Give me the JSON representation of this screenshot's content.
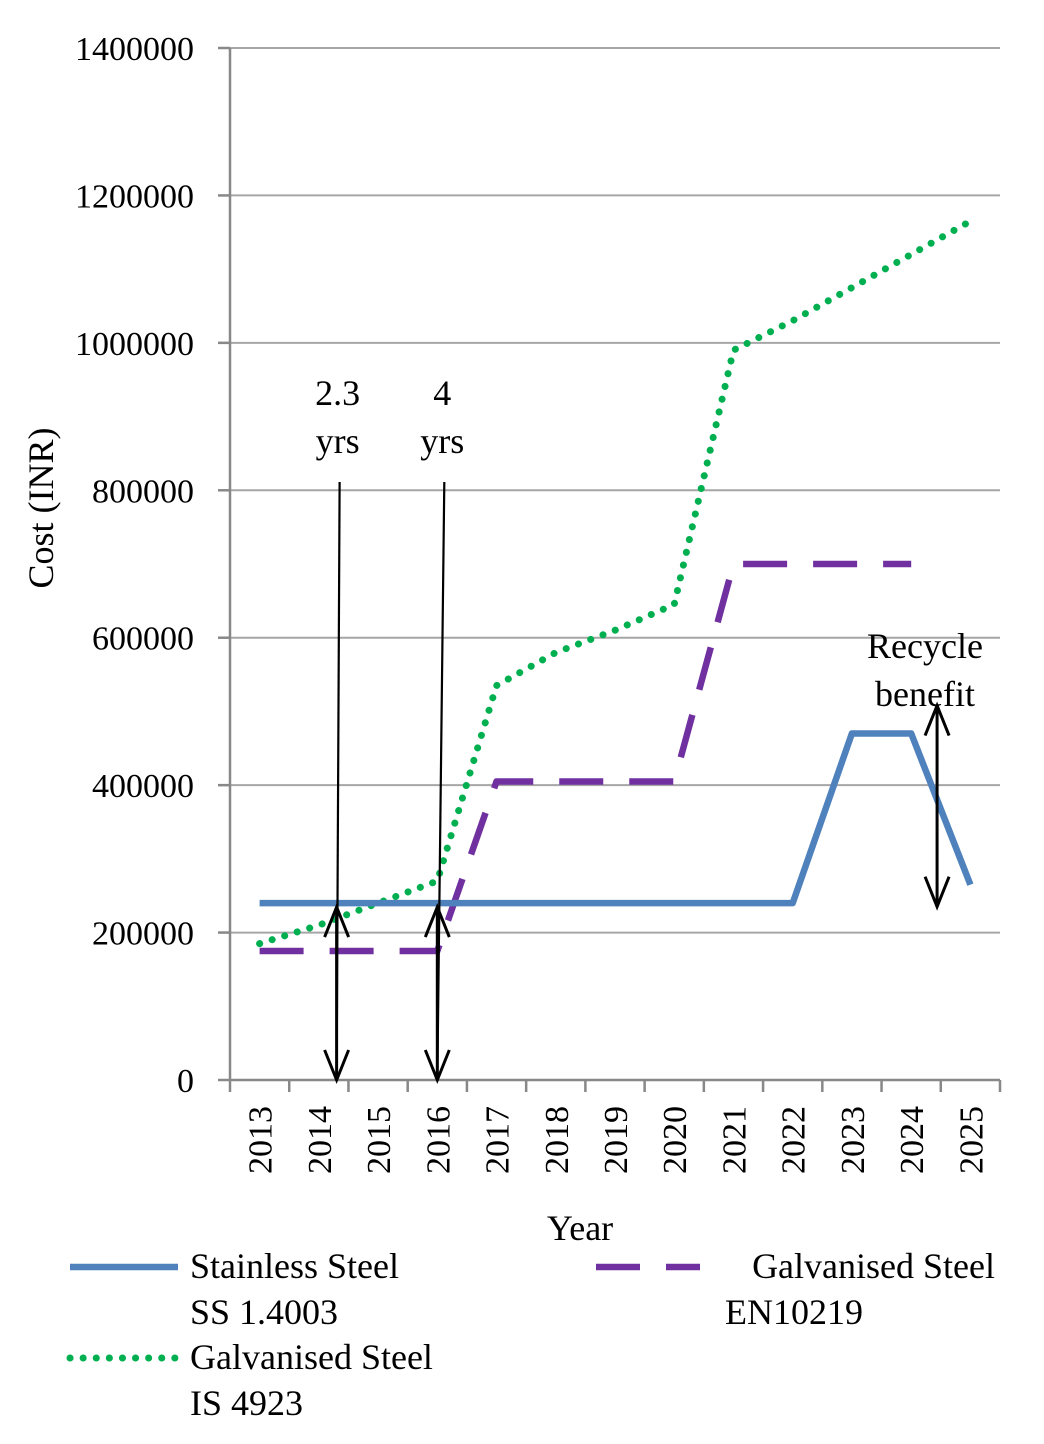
{
  "chart_data": {
    "type": "line",
    "title": "",
    "xlabel": "Year",
    "ylabel": "Cost (INR)",
    "ylim": [
      0,
      1400000
    ],
    "yticks": [
      "0",
      "200000",
      "400000",
      "600000",
      "800000",
      "1000000",
      "1200000",
      "1400000"
    ],
    "categories": [
      "2013",
      "2014",
      "2015",
      "2016",
      "2017",
      "2018",
      "2019",
      "2020",
      "2021",
      "2022",
      "2023",
      "2024",
      "2025"
    ],
    "grid": true,
    "series": [
      {
        "name": "Stainless Steel SS 1.4003",
        "legend_lines": [
          "Stainless Steel",
          "SS 1.4003"
        ],
        "style": "solid",
        "color": "#4f81bd",
        "values": [
          240000,
          240000,
          240000,
          240000,
          240000,
          240000,
          240000,
          240000,
          240000,
          240000,
          470000,
          470000,
          265000
        ]
      },
      {
        "name": "Galvanised Steel EN10219",
        "legend_lines": [
          "Galvanised Steel",
          "EN10219"
        ],
        "style": "dashed",
        "color": "#7030a0",
        "values": [
          175000,
          175000,
          175000,
          175000,
          405000,
          405000,
          405000,
          405000,
          700000,
          700000,
          700000,
          700000,
          null
        ]
      },
      {
        "name": "Galvanised Steel IS 4923",
        "legend_lines": [
          "Galvanised Steel",
          "IS 4923"
        ],
        "style": "dotted",
        "color": "#00b050",
        "values": [
          185000,
          210000,
          240000,
          270000,
          535000,
          580000,
          610000,
          645000,
          990000,
          1030000,
          1075000,
          1120000,
          1165000
        ]
      }
    ],
    "annotations": [
      {
        "id": "payback-1",
        "lines": [
          "2.3",
          "yrs"
        ],
        "x": 2.3,
        "note": "breakeven: stainless vs IS 4923"
      },
      {
        "id": "payback-2",
        "lines": [
          "4",
          "yrs"
        ],
        "x": 4.0,
        "note": "breakeven: stainless vs EN10219"
      },
      {
        "id": "recycle",
        "lines": [
          "Recycle",
          "benefit"
        ],
        "x": 12.1,
        "y_from": 265000,
        "y_to": 470000
      }
    ],
    "legend_position": "bottom"
  }
}
